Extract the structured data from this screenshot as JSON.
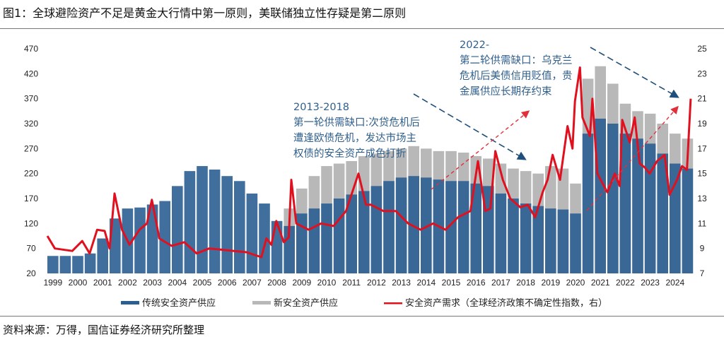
{
  "title": "图1：全球避险资产不足是黄金大行情中第一原则，美联储独立性存疑是第二原则",
  "source": "资料来源：万得，国信证券经济研究所整理",
  "colors": {
    "traditional": "#2b5f93",
    "new": "#b8b8b8",
    "demand": "#e0101e",
    "annotation": "#2f5f8c"
  },
  "chart_data": {
    "type": "bar+line",
    "xlabel": "",
    "x_ticks": [
      "1999",
      "2000",
      "2001",
      "2002",
      "2003",
      "2004",
      "2005",
      "2006",
      "2007",
      "2008",
      "2009",
      "2010",
      "2011",
      "2012",
      "2013",
      "2014",
      "2015",
      "2016",
      "2017",
      "2018",
      "2019",
      "2020",
      "2021",
      "2022",
      "2023",
      "2024"
    ],
    "y_left": {
      "range": [
        20,
        470
      ],
      "ticks": [
        "20",
        "70",
        "120",
        "170",
        "220",
        "270",
        "320",
        "370",
        "420",
        "470"
      ]
    },
    "y_right": {
      "range": [
        7,
        25
      ],
      "ticks": [
        "7",
        "9",
        "11",
        "13",
        "15",
        "17",
        "19",
        "21",
        "23",
        "25"
      ]
    },
    "grid": false,
    "legend_placement": "bottom",
    "bar_x": [
      1999,
      1999.5,
      2000,
      2000.5,
      2001,
      2001.5,
      2002,
      2002.5,
      2003,
      2003.5,
      2004,
      2004.5,
      2005,
      2005.5,
      2006,
      2006.5,
      2007,
      2007.5,
      2008,
      2008.5,
      2009,
      2009.5,
      2010,
      2010.5,
      2011,
      2011.5,
      2012,
      2012.5,
      2013,
      2013.5,
      2014,
      2014.5,
      2015,
      2015.5,
      2016,
      2016.5,
      2017,
      2017.5,
      2018,
      2018.5,
      2019,
      2019.5,
      2020,
      2020.5,
      2021,
      2021.5,
      2022,
      2022.5,
      2023,
      2023.5,
      2024,
      2024.5
    ],
    "series": [
      {
        "name": "传统安全资产供应",
        "axis": "left",
        "kind": "bar",
        "values": [
          55,
          55,
          55,
          60,
          90,
          130,
          150,
          152,
          158,
          165,
          195,
          225,
          235,
          228,
          215,
          205,
          180,
          160,
          125,
          115,
          140,
          150,
          160,
          170,
          178,
          185,
          195,
          205,
          212,
          215,
          212,
          208,
          205,
          205,
          200,
          195,
          180,
          170,
          160,
          155,
          150,
          148,
          140,
          300,
          330,
          320,
          300,
          290,
          280,
          260,
          240,
          230
        ]
      },
      {
        "name": "新安全资产供应",
        "axis": "left",
        "kind": "bar",
        "values": [
          0,
          0,
          0,
          0,
          0,
          0,
          0,
          0,
          0,
          0,
          0,
          0,
          0,
          0,
          0,
          0,
          0,
          0,
          0,
          150,
          190,
          215,
          235,
          240,
          245,
          255,
          260,
          265,
          270,
          275,
          270,
          265,
          265,
          262,
          255,
          250,
          240,
          230,
          225,
          220,
          235,
          230,
          200,
          410,
          435,
          400,
          360,
          345,
          340,
          320,
          300,
          290
        ]
      },
      {
        "name": "安全资产需求（全球经济政策不确定性指数，右）",
        "axis": "right",
        "kind": "line",
        "x": [
          1999,
          1999.3,
          2000,
          2000.4,
          2000.7,
          2001,
          2001.3,
          2001.5,
          2001.7,
          2002,
          2002.3,
          2002.7,
          2003,
          2003.2,
          2003.5,
          2004,
          2004.5,
          2005,
          2005.5,
          2006,
          2006.5,
          2007,
          2007.6,
          2007.8,
          2008,
          2008.2,
          2008.5,
          2008.7,
          2008.8,
          2009,
          2009.5,
          2010,
          2010.5,
          2011,
          2011.5,
          2011.8,
          2012,
          2012.5,
          2013,
          2013.5,
          2014,
          2014.5,
          2015,
          2015.5,
          2016,
          2016.3,
          2016.6,
          2016.8,
          2017,
          2017.3,
          2017.6,
          2018,
          2018.3,
          2018.6,
          2018.9,
          2019.1,
          2019.3,
          2019.6,
          2019.9,
          2020.1,
          2020.2,
          2020.4,
          2020.5,
          2020.8,
          2020.9,
          2021.1,
          2021.5,
          2021.8,
          2022,
          2022.1,
          2022.4,
          2022.6,
          2022.8,
          2023,
          2023.2,
          2023.5,
          2023.8,
          2024,
          2024.3,
          2024.5,
          2024.7,
          2024.85
        ],
        "values": [
          10,
          9,
          8.8,
          9.6,
          8.6,
          10.5,
          10.4,
          9,
          13.4,
          10.5,
          9.3,
          10.5,
          11,
          12.9,
          9.8,
          9.2,
          9.5,
          8.6,
          9,
          8.9,
          8.8,
          8.7,
          8.3,
          9.8,
          9.3,
          11.2,
          9.5,
          9.9,
          14.5,
          11,
          10.5,
          11,
          10.8,
          12,
          15,
          12.5,
          12.5,
          12,
          12,
          11,
          10.5,
          11,
          10.5,
          11.5,
          12,
          16,
          12,
          12.2,
          16.8,
          14.5,
          13,
          12.3,
          12.5,
          11.5,
          13.5,
          14.5,
          16.5,
          14.5,
          18.8,
          17,
          20.8,
          23.5,
          19.5,
          18,
          21,
          15,
          13.5,
          15,
          14,
          19.3,
          17.5,
          19.5,
          15.8,
          15.5,
          15,
          16,
          16.5,
          13.3,
          14.5,
          15.6,
          15.3,
          21
        ]
      }
    ],
    "annotations": [
      {
        "lines": [
          "2013-2018",
          "第一轮供需缺口:次贷危机后",
          "遭逢欧债危机，发达市场主",
          "权债的安全资产成色打折"
        ]
      },
      {
        "lines": [
          "2022-",
          "第二轮供需缺口：乌克兰",
          "危机后美债信用贬值，贵",
          "金属供应长期存约束"
        ]
      }
    ]
  }
}
